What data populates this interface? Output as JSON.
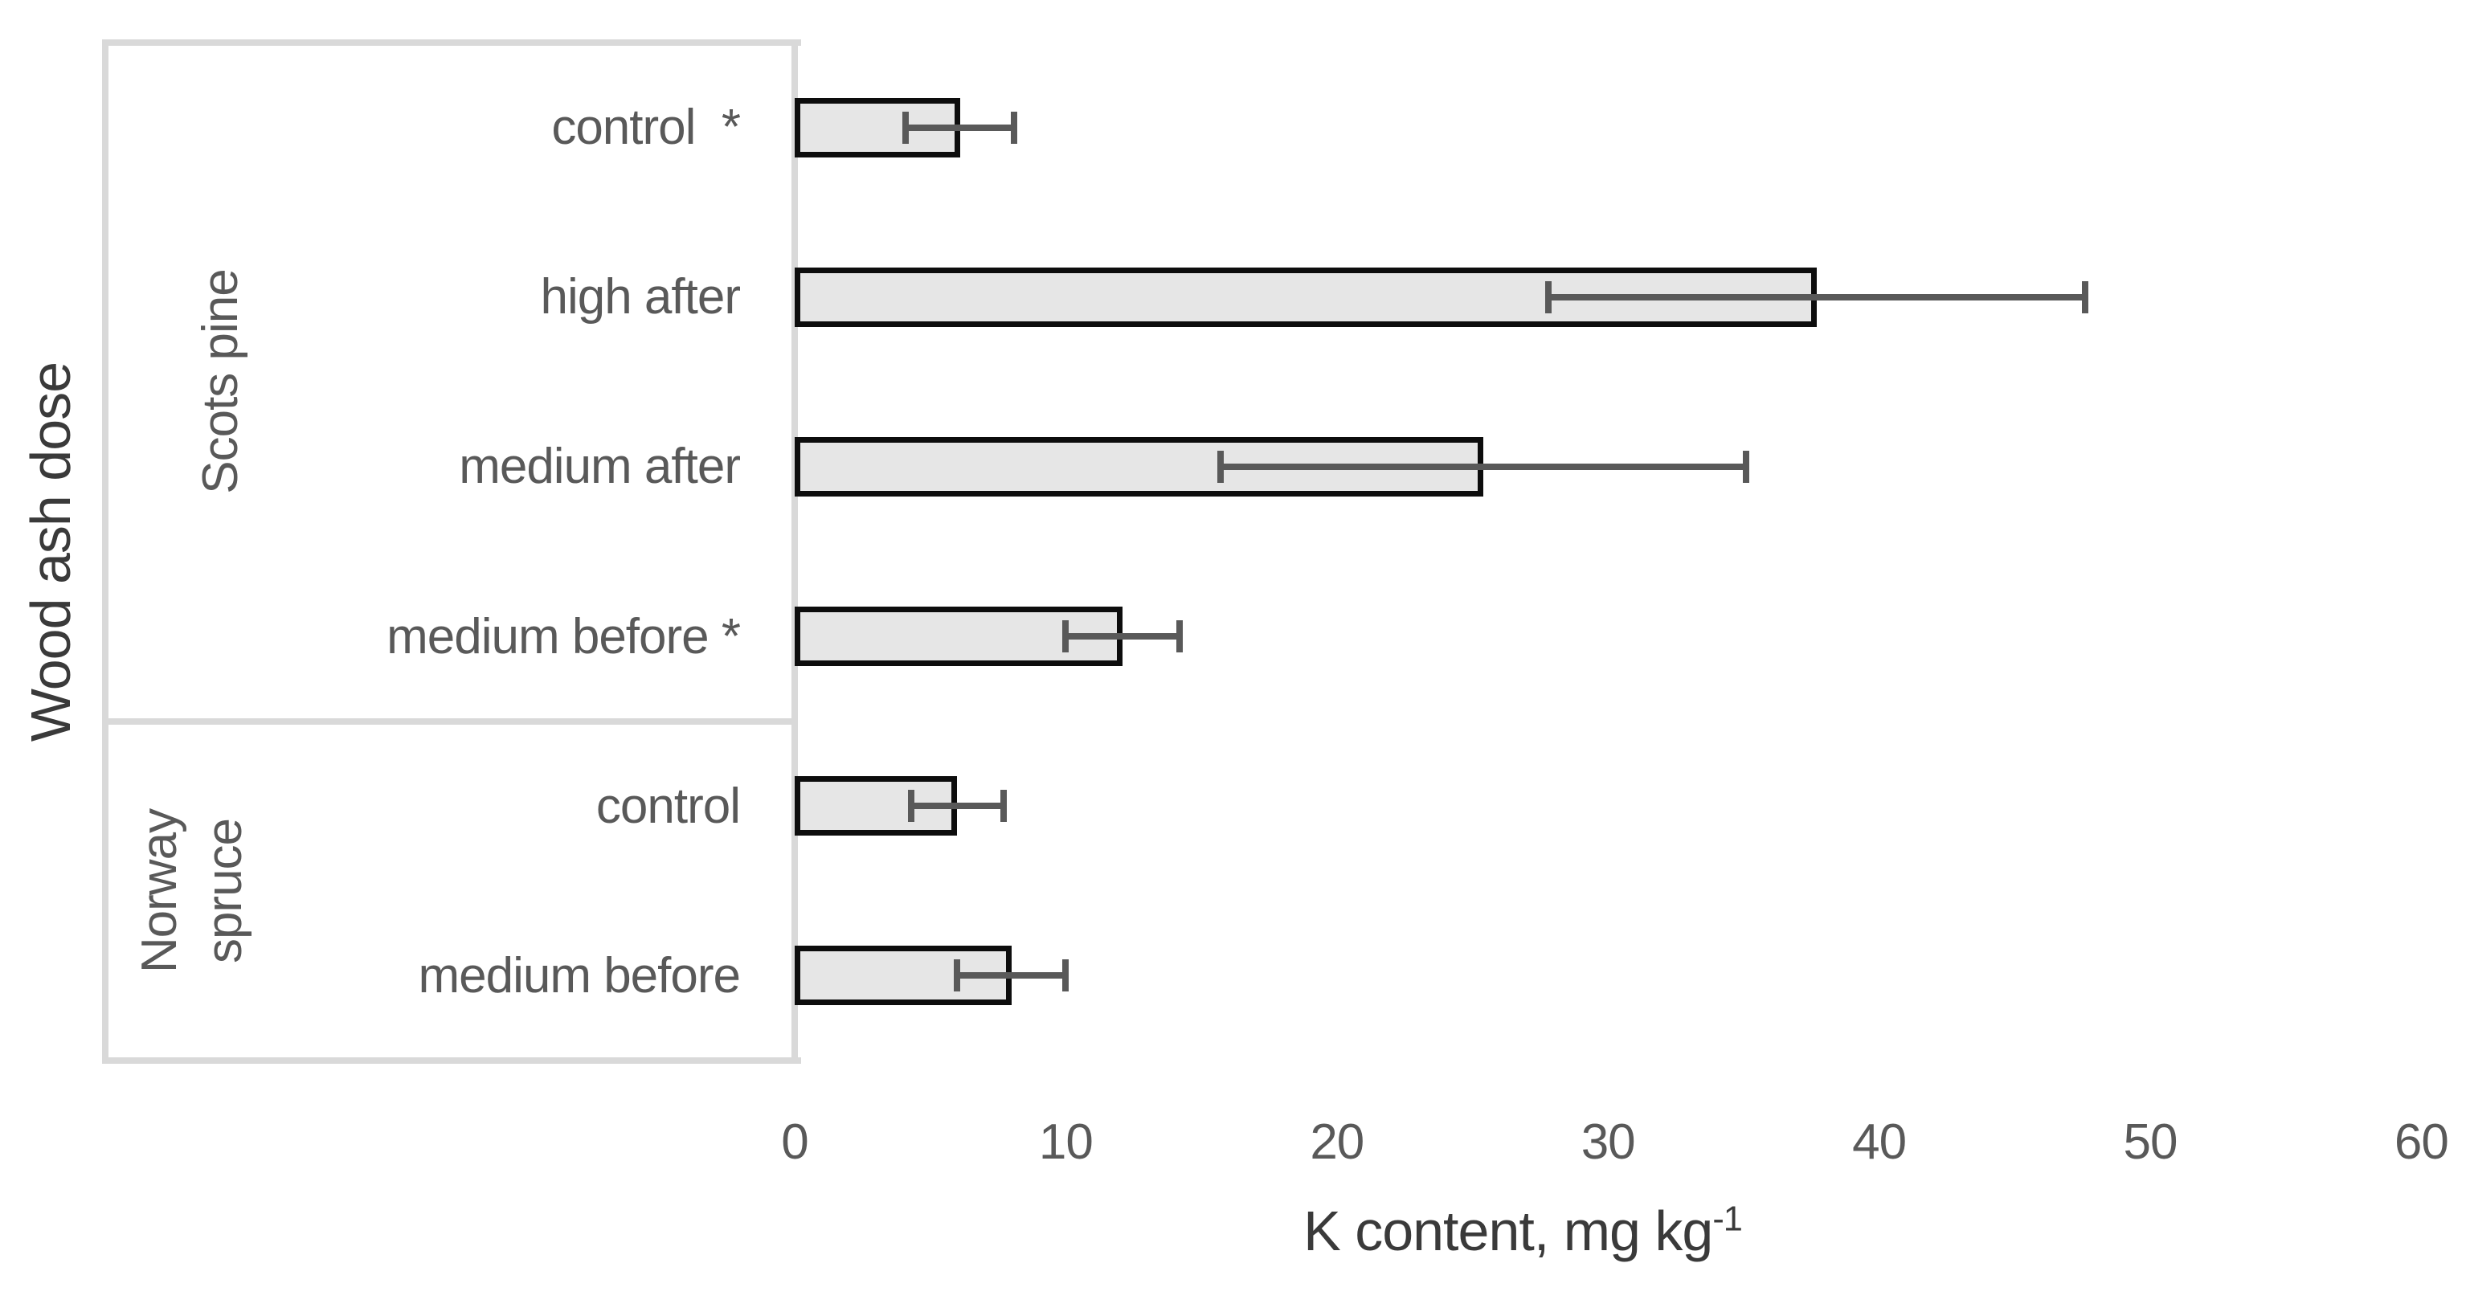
{
  "chart_data": {
    "type": "bar",
    "orientation": "horizontal",
    "xlabel": "K content, mg kg⁻¹",
    "xlabel_main": "K content, mg kg",
    "xlabel_sup": "-1",
    "ylabel": "Wood ash dose",
    "xlim": [
      0,
      60
    ],
    "x_ticks": [
      0,
      10,
      20,
      30,
      40,
      50,
      60
    ],
    "grid": false,
    "legend": "none",
    "bar_fill_color": "#e6e6e6",
    "bar_border_color": "#0d0d0d",
    "error_bar_color": "#595959",
    "axis_line_color": "#d9d9d9",
    "label_text_color": "#595959",
    "title_text_color": "#3a3a3a",
    "groups": [
      {
        "name": "Scots pine",
        "rows": [
          {
            "label": "control  *",
            "value": 6.1,
            "error": 2.0
          },
          {
            "label": "high after",
            "value": 37.7,
            "error": 9.9
          },
          {
            "label": "medium after",
            "value": 25.4,
            "error": 9.7
          },
          {
            "label": "medium before *",
            "value": 12.1,
            "error": 2.1
          }
        ]
      },
      {
        "name": "Norway spruce",
        "rows": [
          {
            "label": "control",
            "value": 6.0,
            "error": 1.7
          },
          {
            "label": "medium before",
            "value": 8.0,
            "error": 2.0
          }
        ]
      }
    ]
  }
}
